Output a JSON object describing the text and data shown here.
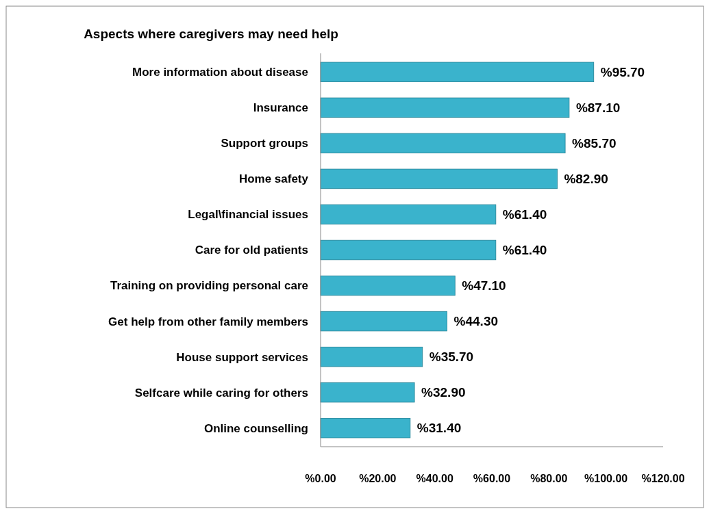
{
  "chart_data": {
    "type": "bar",
    "orientation": "horizontal",
    "title": "Aspects where caregivers may need help",
    "categories": [
      "More information about disease",
      "Insurance",
      "Support groups",
      "Home safety",
      "Legal\\financial issues",
      "Care for old patients",
      "Training on providing personal care",
      "Get help from other family members",
      "House support services",
      "Selfcare while caring for others",
      "Online counselling"
    ],
    "values": [
      95.7,
      87.1,
      85.7,
      82.9,
      61.4,
      61.4,
      47.1,
      44.3,
      35.7,
      32.9,
      31.4
    ],
    "value_labels": [
      "%95.70",
      "%87.10",
      "%85.70",
      "%82.90",
      "%61.40",
      "%61.40",
      "%47.10",
      "%44.30",
      "%35.70",
      "%32.90",
      "%31.40"
    ],
    "color": "#3ab3cc",
    "xlim": [
      0,
      120
    ],
    "xticks": [
      {
        "value": 0,
        "label": "%0.00"
      },
      {
        "value": 20,
        "label": "%20.00"
      },
      {
        "value": 40,
        "label": "%40.00"
      },
      {
        "value": 60,
        "label": "%60.00"
      },
      {
        "value": 80,
        "label": "%80.00"
      },
      {
        "value": 100,
        "label": "%100.00"
      },
      {
        "value": 120,
        "label": "%120.00"
      }
    ],
    "grid": false
  }
}
